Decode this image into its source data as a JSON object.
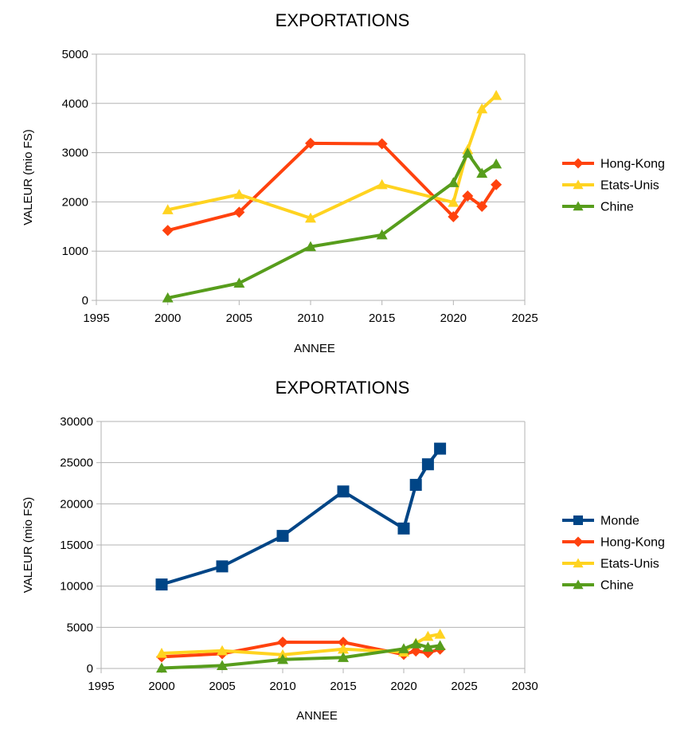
{
  "chart_data": [
    {
      "type": "line",
      "title": "EXPORTATIONS",
      "xlabel": "ANNEE",
      "ylabel": "VALEUR (mio FS)",
      "xlim": [
        1995,
        2025
      ],
      "ylim": [
        0,
        5000
      ],
      "xticks": [
        1995,
        2000,
        2005,
        2010,
        2015,
        2020,
        2025
      ],
      "yticks": [
        0,
        1000,
        2000,
        3000,
        4000,
        5000
      ],
      "grid": true,
      "legend_position": "right",
      "series": [
        {
          "name": "Hong-Kong",
          "color": "#ff420e",
          "marker": "diamond",
          "x": [
            2000,
            2005,
            2010,
            2015,
            2020,
            2021,
            2022,
            2023
          ],
          "y": [
            1420,
            1790,
            3190,
            3180,
            1700,
            2120,
            1910,
            2350
          ]
        },
        {
          "name": "Etats-Unis",
          "color": "#ffd320",
          "marker": "triangle",
          "x": [
            2000,
            2005,
            2010,
            2015,
            2020,
            2021,
            2022,
            2023
          ],
          "y": [
            1840,
            2150,
            1670,
            2350,
            1990,
            3060,
            3890,
            4160
          ]
        },
        {
          "name": "Chine",
          "color": "#579d1c",
          "marker": "triangle",
          "x": [
            2000,
            2005,
            2010,
            2015,
            2020,
            2021,
            2022,
            2023
          ],
          "y": [
            50,
            350,
            1090,
            1330,
            2390,
            2990,
            2580,
            2770
          ]
        }
      ]
    },
    {
      "type": "line",
      "title": "EXPORTATIONS",
      "xlabel": "ANNEE",
      "ylabel": "VALEUR (mio FS)",
      "xlim": [
        1995,
        2030
      ],
      "ylim": [
        0,
        30000
      ],
      "xticks": [
        1995,
        2000,
        2005,
        2010,
        2015,
        2020,
        2025,
        2030
      ],
      "yticks": [
        0,
        5000,
        10000,
        15000,
        20000,
        25000,
        30000
      ],
      "grid": true,
      "legend_position": "right",
      "series": [
        {
          "name": "Monde",
          "color": "#004586",
          "marker": "square",
          "x": [
            2000,
            2005,
            2010,
            2015,
            2020,
            2021,
            2022,
            2023
          ],
          "y": [
            10200,
            12400,
            16100,
            21500,
            17000,
            22300,
            24800,
            26700
          ]
        },
        {
          "name": "Hong-Kong",
          "color": "#ff420e",
          "marker": "diamond",
          "x": [
            2000,
            2005,
            2010,
            2015,
            2020,
            2021,
            2022,
            2023
          ],
          "y": [
            1420,
            1790,
            3190,
            3180,
            1700,
            2120,
            1910,
            2350
          ]
        },
        {
          "name": "Etats-Unis",
          "color": "#ffd320",
          "marker": "triangle",
          "x": [
            2000,
            2005,
            2010,
            2015,
            2020,
            2021,
            2022,
            2023
          ],
          "y": [
            1840,
            2150,
            1670,
            2350,
            1990,
            3060,
            3890,
            4160
          ]
        },
        {
          "name": "Chine",
          "color": "#579d1c",
          "marker": "triangle",
          "x": [
            2000,
            2005,
            2010,
            2015,
            2020,
            2021,
            2022,
            2023
          ],
          "y": [
            50,
            350,
            1090,
            1330,
            2390,
            2990,
            2580,
            2770
          ]
        }
      ]
    }
  ]
}
